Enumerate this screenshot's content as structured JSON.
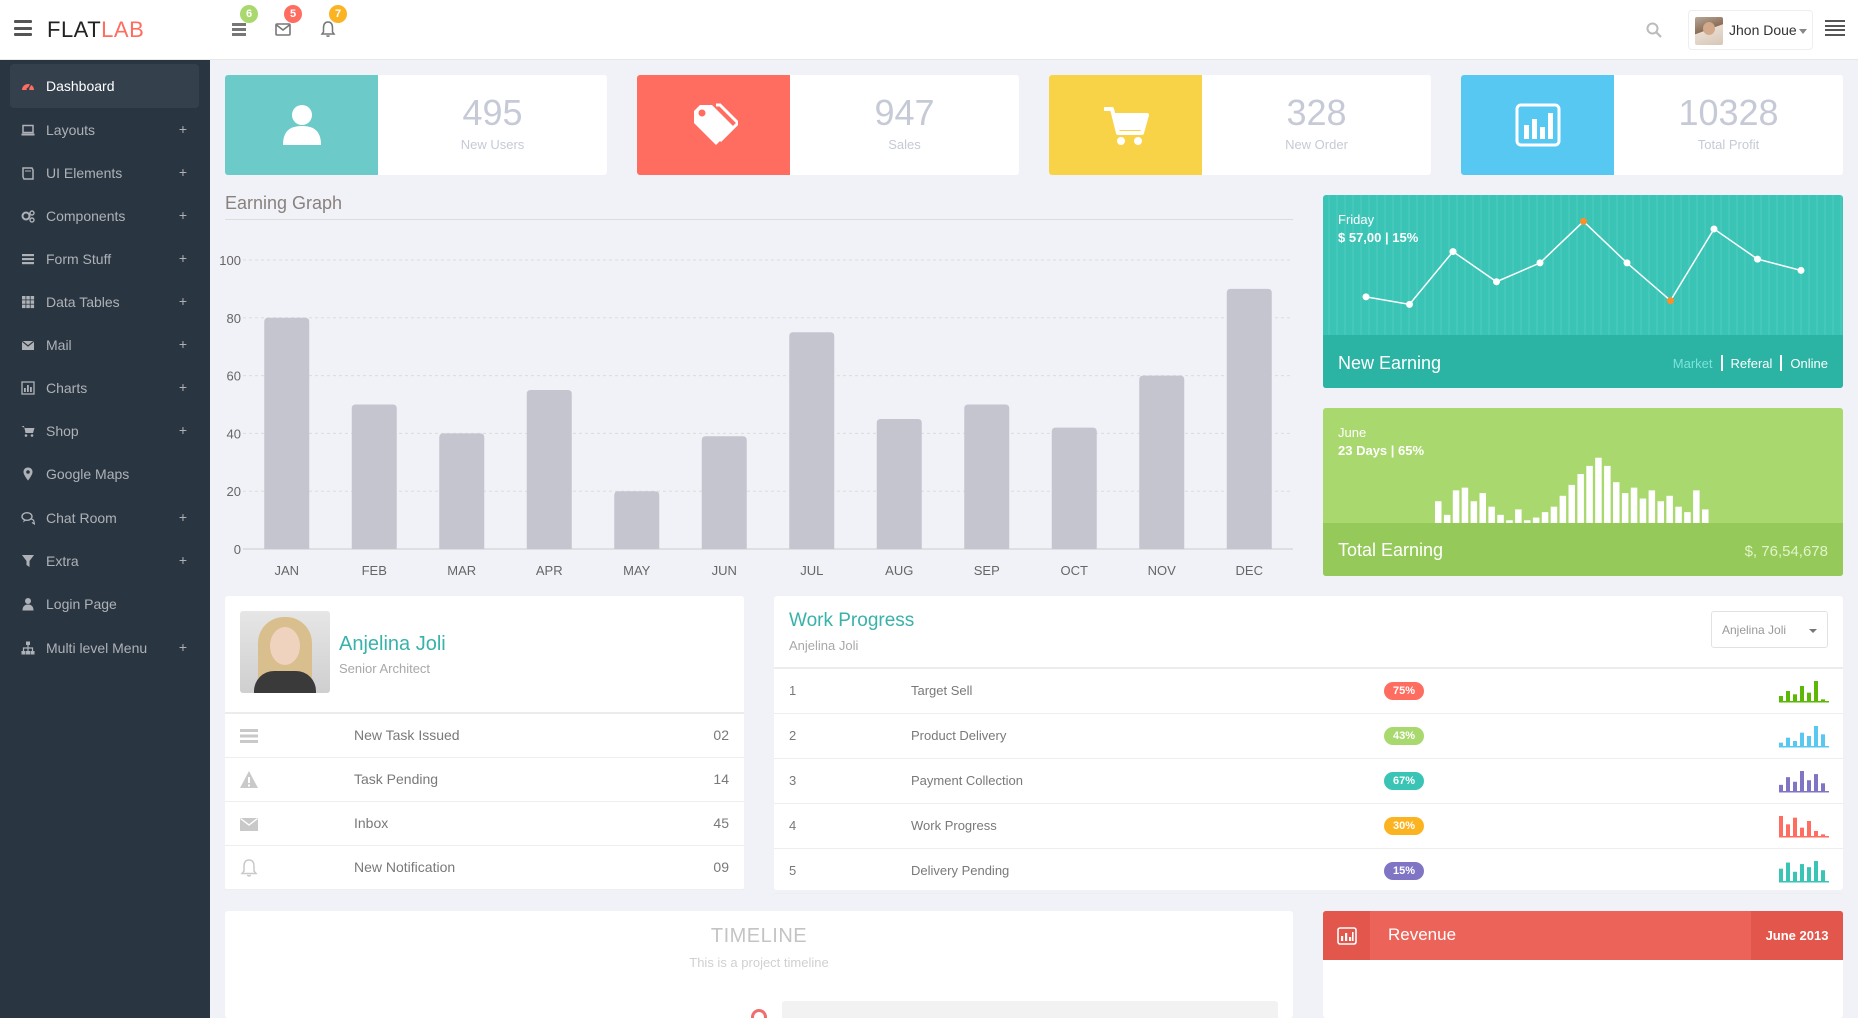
{
  "header": {
    "logo_main": "FLAT",
    "logo_accent": "LAB",
    "notifications": [
      {
        "icon": "tasks-icon",
        "count": "6",
        "color": "#a9d86e"
      },
      {
        "icon": "envelope-icon",
        "count": "5",
        "color": "#ff6c60"
      },
      {
        "icon": "bell-icon",
        "count": "7",
        "color": "#fcb322"
      }
    ],
    "user_name": "Jhon Doue"
  },
  "sidebar": {
    "items": [
      {
        "label": "Dashboard",
        "icon": "dashboard-icon",
        "active": true,
        "expandable": false
      },
      {
        "label": "Layouts",
        "icon": "laptop-icon",
        "expandable": true,
        "plus": "+"
      },
      {
        "label": "UI Elements",
        "icon": "book-icon",
        "expandable": true,
        "plus": "+"
      },
      {
        "label": "Components",
        "icon": "cogs-icon",
        "expandable": true,
        "plus": "+"
      },
      {
        "label": "Form Stuff",
        "icon": "tasks-icon",
        "expandable": true,
        "plus": "+"
      },
      {
        "label": "Data Tables",
        "icon": "th-icon",
        "expandable": true,
        "plus": "+"
      },
      {
        "label": "Mail",
        "icon": "envelope-icon",
        "expandable": true,
        "plus": "+"
      },
      {
        "label": "Charts",
        "icon": "bar-chart-icon",
        "expandable": true,
        "plus": "+"
      },
      {
        "label": "Shop",
        "icon": "shopping-cart-icon",
        "expandable": true,
        "plus": "+"
      },
      {
        "label": "Google Maps",
        "icon": "map-marker-icon",
        "expandable": false
      },
      {
        "label": "Chat Room",
        "icon": "comments-icon",
        "expandable": true,
        "plus": "+"
      },
      {
        "label": "Extra",
        "icon": "filter-icon",
        "expandable": true,
        "plus": "+"
      },
      {
        "label": "Login Page",
        "icon": "user-icon",
        "expandable": false
      },
      {
        "label": "Multi level Menu",
        "icon": "sitemap-icon",
        "expandable": true,
        "plus": "+"
      }
    ]
  },
  "stats": [
    {
      "value": "495",
      "label": "New Users",
      "color": "#6ccac9",
      "icon": "user-icon"
    },
    {
      "value": "947",
      "label": "Sales",
      "color": "#ff6c60",
      "icon": "tags-icon"
    },
    {
      "value": "328",
      "label": "New Order",
      "color": "#f8d347",
      "icon": "shopping-cart-icon"
    },
    {
      "value": "10328",
      "label": "Total Profit",
      "color": "#57c8f2",
      "icon": "bar-chart-icon"
    }
  ],
  "earning_graph": {
    "title": "Earning Graph"
  },
  "chart_data": [
    {
      "type": "bar",
      "categories": [
        "JAN",
        "FEB",
        "MAR",
        "APR",
        "MAY",
        "JUN",
        "JUL",
        "AUG",
        "SEP",
        "OCT",
        "NOV",
        "DEC"
      ],
      "values": [
        80,
        50,
        40,
        55,
        20,
        39,
        75,
        45,
        50,
        42,
        60,
        90
      ],
      "yticks": [
        "0",
        "20",
        "40",
        "60",
        "80",
        "100"
      ],
      "ylim": [
        0,
        100
      ],
      "bar_color": "#c4c5cf",
      "grid": true
    },
    {
      "type": "line",
      "values": [
        8,
        6,
        20,
        12,
        17,
        28,
        17,
        7,
        26,
        18,
        15
      ],
      "ylim": [
        0,
        35
      ],
      "highlighted": [
        5,
        7
      ]
    },
    {
      "type": "bar",
      "values": [
        8,
        3,
        12,
        13,
        8,
        11,
        6,
        3,
        1,
        5,
        1,
        2,
        4,
        6,
        10,
        14,
        18,
        21,
        24,
        21,
        15,
        11,
        13,
        9,
        12,
        8,
        10,
        6,
        4,
        12,
        5
      ],
      "ylim": [
        0,
        25
      ]
    }
  ],
  "earning_card": {
    "day": "Friday",
    "amount": "$ 57,00 | 15%",
    "title": "New Earning",
    "links": [
      "Market",
      "Referal",
      "Online"
    ],
    "selected_link": "Market"
  },
  "total_card": {
    "month": "June",
    "days": "23 Days | 65%",
    "title": "Total Earning",
    "value": "$, 76,54,678"
  },
  "profile": {
    "name": "Anjelina Joli",
    "role": "Senior Architect",
    "rows": [
      {
        "icon": "tasks-icon",
        "label": "New Task Issued",
        "value": "02"
      },
      {
        "icon": "warning-icon",
        "label": "Task Pending",
        "value": "14"
      },
      {
        "icon": "envelope-icon",
        "label": "Inbox",
        "value": "45"
      },
      {
        "icon": "bell-icon",
        "label": "New Notification",
        "value": "09"
      }
    ]
  },
  "work_progress": {
    "title": "Work Progress",
    "subtitle": "Anjelina Joli",
    "select_value": "Anjelina Joli",
    "rows": [
      {
        "num": "1",
        "label": "Target Sell",
        "percent": "75%",
        "badge_color": "#ff6c60",
        "spark_color": "#5cb806",
        "spark": [
          3,
          6,
          4,
          9,
          5,
          12,
          1
        ]
      },
      {
        "num": "2",
        "label": "Product Delivery",
        "percent": "43%",
        "badge_color": "#a9d86e",
        "spark_color": "#59c8f1",
        "spark": [
          2,
          5,
          3,
          8,
          6,
          12,
          7
        ]
      },
      {
        "num": "3",
        "label": "Payment Collection",
        "percent": "67%",
        "badge_color": "#39c4b6",
        "spark_color": "#8075c4",
        "spark": [
          4,
          9,
          6,
          13,
          7,
          11,
          5
        ]
      },
      {
        "num": "4",
        "label": "Work Progress",
        "percent": "30%",
        "badge_color": "#fcb322",
        "spark_color": "#ff6c60",
        "spark": [
          12,
          7,
          11,
          5,
          9,
          3,
          1
        ]
      },
      {
        "num": "5",
        "label": "Delivery Pending",
        "percent": "15%",
        "badge_color": "#8075c4",
        "spark_color": "#39c4b6",
        "spark": [
          8,
          12,
          6,
          11,
          9,
          13,
          7
        ]
      }
    ]
  },
  "timeline": {
    "title": "TIMELINE",
    "subtitle": "This is a project timeline"
  },
  "revenue": {
    "icon": "bar-chart-icon",
    "title": "Revenue",
    "date": "June 2013"
  }
}
